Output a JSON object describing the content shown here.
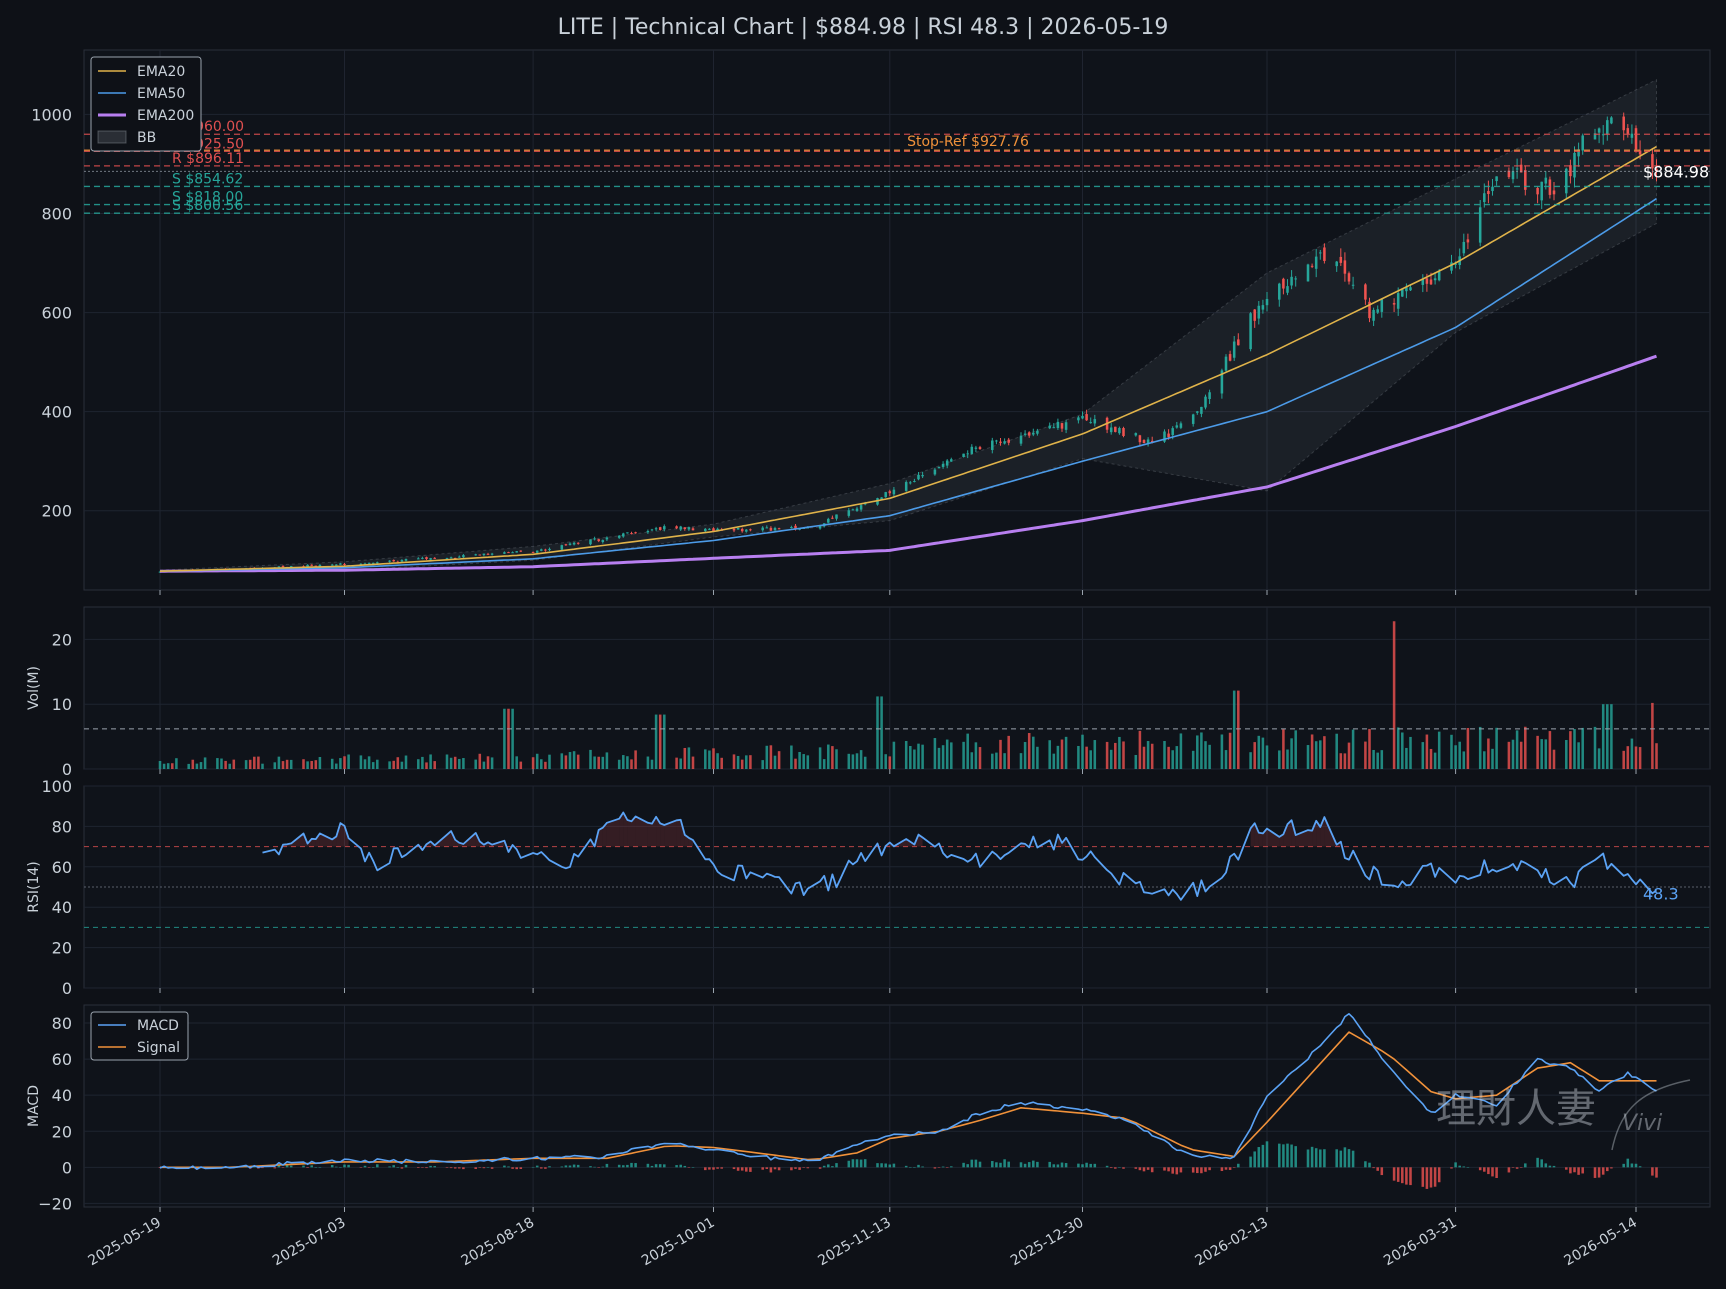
{
  "title": "LITE  |  Technical Chart  |  $884.98  |  RSI 48.3  |  2026-05-19",
  "colors": {
    "background": "#0e1117",
    "panel": "#0e1117",
    "grid": "#1f2430",
    "text": "#c9d1d9",
    "up": "#26a69a",
    "down": "#ef5350",
    "ema20": "#e0b34a",
    "ema50": "#4c9be8",
    "ema200": "#b87ff0",
    "bb": "#9aa3ad",
    "rsi": "#5ba3f5",
    "macd": "#5ba3f5",
    "signal": "#f0913a",
    "stop": "#f0913a",
    "resistance": "#e05050",
    "support": "#26a69a"
  },
  "chart_data": [
    {
      "type": "candlestick",
      "panel": "price",
      "x_tick_labels": [
        "2025-05-19",
        "2025-07-03",
        "2025-08-18",
        "2025-10-01",
        "2025-11-13",
        "2025-12-30",
        "2026-02-13",
        "2026-03-31",
        "2026-05-14"
      ],
      "y_ticks": [
        200,
        400,
        600,
        800,
        1000
      ],
      "ylim": [
        40,
        1130
      ],
      "legend": {
        "position": "top-left",
        "entries": [
          "EMA20",
          "EMA50",
          "EMA200",
          "BB"
        ]
      },
      "price_anchors": {
        "dates": [
          "2025-05-19",
          "2025-06-01",
          "2025-07-03",
          "2025-08-18",
          "2025-09-20",
          "2025-10-01",
          "2025-10-25",
          "2025-11-13",
          "2025-12-05",
          "2025-12-30",
          "2026-01-15",
          "2026-01-25",
          "2026-02-13",
          "2026-02-28",
          "2026-03-10",
          "2026-03-31",
          "2026-04-10",
          "2026-04-25",
          "2026-05-01",
          "2026-05-10",
          "2026-05-19"
        ],
        "close": [
          78,
          80,
          92,
          118,
          168,
          160,
          165,
          240,
          330,
          385,
          340,
          375,
          640,
          720,
          600,
          700,
          880,
          850,
          940,
          990,
          884.98
        ]
      },
      "indicator_anchors": {
        "dates": [
          "2025-05-19",
          "2025-07-03",
          "2025-08-18",
          "2025-10-01",
          "2025-11-13",
          "2025-12-30",
          "2026-02-13",
          "2026-03-31",
          "2026-05-19"
        ],
        "ema20": [
          78,
          88,
          112,
          158,
          225,
          355,
          515,
          700,
          935
        ],
        "ema50": [
          78,
          85,
          103,
          140,
          190,
          300,
          400,
          570,
          830
        ],
        "ema200": [
          78,
          80,
          87,
          104,
          120,
          180,
          248,
          370,
          512
        ],
        "bb_upper": [
          80,
          97,
          128,
          173,
          255,
          395,
          680,
          870,
          1070
        ],
        "bb_lower": [
          76,
          80,
          100,
          147,
          180,
          305,
          240,
          560,
          780
        ]
      },
      "levels": [
        {
          "label": "R $960.00",
          "value": 960.0,
          "kind": "resistance"
        },
        {
          "label": "R $925.50",
          "value": 925.5,
          "kind": "resistance"
        },
        {
          "label": "Stop-Ref $927.76",
          "value": 927.76,
          "kind": "stop"
        },
        {
          "label": "R $896.11",
          "value": 896.11,
          "kind": "resistance"
        },
        {
          "label": "S $854.62",
          "value": 854.62,
          "kind": "support"
        },
        {
          "label": "S $818.00",
          "value": 818.0,
          "kind": "support"
        },
        {
          "label": "S $800.56",
          "value": 800.56,
          "kind": "support"
        }
      ],
      "last_price": 884.98,
      "last_price_label": "$884.98"
    },
    {
      "type": "bar",
      "panel": "volume",
      "ylabel": "Vol(M)",
      "y_ticks": [
        0,
        10,
        20
      ],
      "ylim": [
        0,
        25
      ],
      "average_volume": 6.2,
      "volume_anchors": {
        "t": [
          0,
          0.4,
          0.55,
          0.75,
          1.0
        ],
        "base": [
          1.2,
          2.6,
          4.0,
          4.6,
          5.0
        ]
      },
      "spikes": [
        {
          "date": "2025-08-12",
          "value": 9.3
        },
        {
          "date": "2025-09-18",
          "value": 8.4
        },
        {
          "date": "2025-11-10",
          "value": 11.2
        },
        {
          "date": "2026-02-06",
          "value": 12.1
        },
        {
          "date": "2026-03-15",
          "value": 22.8
        },
        {
          "date": "2026-05-07",
          "value": 10.0
        },
        {
          "date": "2026-05-17",
          "value": 10.2
        }
      ]
    },
    {
      "type": "line",
      "panel": "rsi",
      "ylabel": "RSI(14)",
      "y_ticks": [
        0,
        20,
        40,
        60,
        80,
        100
      ],
      "ylim": [
        0,
        100
      ],
      "overbought": 70,
      "oversold": 30,
      "midline": 50,
      "rsi_anchors": {
        "dates": [
          "2025-06-13",
          "2025-06-20",
          "2025-07-03",
          "2025-07-10",
          "2025-07-25",
          "2025-08-05",
          "2025-08-18",
          "2025-08-28",
          "2025-09-05",
          "2025-09-15",
          "2025-09-25",
          "2025-10-01",
          "2025-10-10",
          "2025-10-20",
          "2025-10-30",
          "2025-11-05",
          "2025-11-15",
          "2025-11-25",
          "2025-12-05",
          "2025-12-12",
          "2025-12-20",
          "2025-12-30",
          "2026-01-05",
          "2026-01-15",
          "2026-01-25",
          "2026-02-01",
          "2026-02-10",
          "2026-02-20",
          "2026-02-28",
          "2026-03-05",
          "2026-03-15",
          "2026-03-25",
          "2026-03-31",
          "2026-04-10",
          "2026-04-20",
          "2026-04-28",
          "2026-05-05",
          "2026-05-12",
          "2026-05-19"
        ],
        "values": [
          66,
          70,
          79,
          62,
          72,
          76,
          65,
          62,
          80,
          86,
          78,
          57,
          58,
          48,
          52,
          62,
          75,
          68,
          63,
          66,
          75,
          67,
          58,
          50,
          47,
          54,
          78,
          80,
          82,
          65,
          50,
          58,
          55,
          62,
          58,
          52,
          64,
          58,
          48.3
        ]
      },
      "last_value_label": "48.3"
    },
    {
      "type": "line",
      "panel": "macd",
      "ylabel": "MACD",
      "y_ticks": [
        -20,
        0,
        20,
        40,
        60,
        80
      ],
      "y_tick_labels": [
        "−20",
        "0",
        "20",
        "40",
        "60",
        "80"
      ],
      "ylim": [
        -22,
        90
      ],
      "legend": {
        "position": "top-left",
        "entries": [
          "MACD",
          "Signal"
        ]
      },
      "macd_anchors": {
        "dates": [
          "2025-05-19",
          "2025-06-05",
          "2025-07-03",
          "2025-07-25",
          "2025-08-18",
          "2025-09-05",
          "2025-09-20",
          "2025-10-01",
          "2025-10-15",
          "2025-10-25",
          "2025-11-05",
          "2025-11-13",
          "2025-11-25",
          "2025-12-05",
          "2025-12-15",
          "2025-12-30",
          "2026-01-10",
          "2026-01-25",
          "2026-02-05",
          "2026-02-13",
          "2026-02-25",
          "2026-03-05",
          "2026-03-15",
          "2026-03-25",
          "2026-03-31",
          "2026-04-10",
          "2026-04-20",
          "2026-04-28",
          "2026-05-05",
          "2026-05-12",
          "2026-05-19"
        ],
        "macd": [
          0,
          0,
          4,
          3,
          5,
          6,
          14,
          10,
          5,
          3,
          12,
          18,
          20,
          30,
          36,
          32,
          26,
          6,
          5,
          40,
          65,
          85,
          55,
          30,
          40,
          35,
          60,
          55,
          42,
          52,
          42
        ],
        "signal": [
          0,
          0,
          3,
          3,
          5,
          5,
          12,
          11,
          7,
          4,
          8,
          16,
          20,
          26,
          33,
          30,
          27,
          10,
          6,
          25,
          55,
          75,
          62,
          42,
          38,
          40,
          55,
          58,
          48,
          48,
          48
        ]
      }
    }
  ],
  "watermark": {
    "text": "理財人妻",
    "signature": "Vivi"
  }
}
